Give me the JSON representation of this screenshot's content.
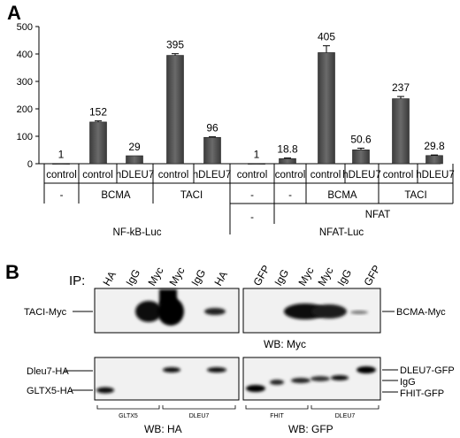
{
  "panel_a": {
    "label": "A",
    "chart_data": {
      "type": "bar",
      "ylim": [
        0,
        500
      ],
      "yticks": [
        "0",
        "100",
        "200",
        "300",
        "400",
        "500"
      ],
      "bars": [
        {
          "value": 1,
          "label": "1",
          "err": 0
        },
        {
          "value": 152,
          "label": "152",
          "err": 4
        },
        {
          "value": 29,
          "label": "29",
          "err": 0
        },
        {
          "value": 395,
          "label": "395",
          "err": 6
        },
        {
          "value": 96,
          "label": "96",
          "err": 2
        },
        {
          "value": 1,
          "label": "1",
          "err": 0
        },
        {
          "value": 18.8,
          "label": "18.8",
          "err": 2
        },
        {
          "value": 405,
          "label": "405",
          "err": 25
        },
        {
          "value": 50.6,
          "label": "50.6",
          "err": 6
        },
        {
          "value": 237,
          "label": "237",
          "err": 8
        },
        {
          "value": 29.8,
          "label": "29.8",
          "err": 2
        }
      ],
      "row1": [
        "control",
        "control",
        "hDLEU7",
        "control",
        "hDLEU7",
        "control",
        "control",
        "control",
        "hDLEU7",
        "control",
        "hDLEU7"
      ],
      "row2": [
        "-",
        "BCMA",
        "TACI",
        "-",
        "-",
        "BCMA",
        "TACI"
      ],
      "row3": [
        "-",
        "NFAT"
      ],
      "row4": [
        "NF-kB-Luc",
        "NFAT-Luc"
      ]
    }
  },
  "panel_b": {
    "label": "B",
    "ip_label": "IP:",
    "lanes_left": [
      "HA",
      "IgG",
      "Myc",
      "Myc",
      "IgG",
      "HA"
    ],
    "lanes_right": [
      "GFP",
      "IgG",
      "Myc",
      "Myc",
      "IgG",
      "GFP"
    ],
    "top_left_label": "TACI-Myc",
    "top_right_label": "BCMA-Myc",
    "top_wb": "WB: Myc",
    "bottom_left_labels": [
      "Dleu7-HA",
      "GLTX5-HA"
    ],
    "bottom_right_labels": [
      "DLEU7-GFP",
      "IgG",
      "FHIT-GFP"
    ],
    "bracket_left": [
      "GLTX5",
      "DLEU7"
    ],
    "bracket_right": [
      "FHIT",
      "DLEU7"
    ],
    "wb_bottom_left": "WB: HA",
    "wb_bottom_right": "WB: GFP"
  }
}
